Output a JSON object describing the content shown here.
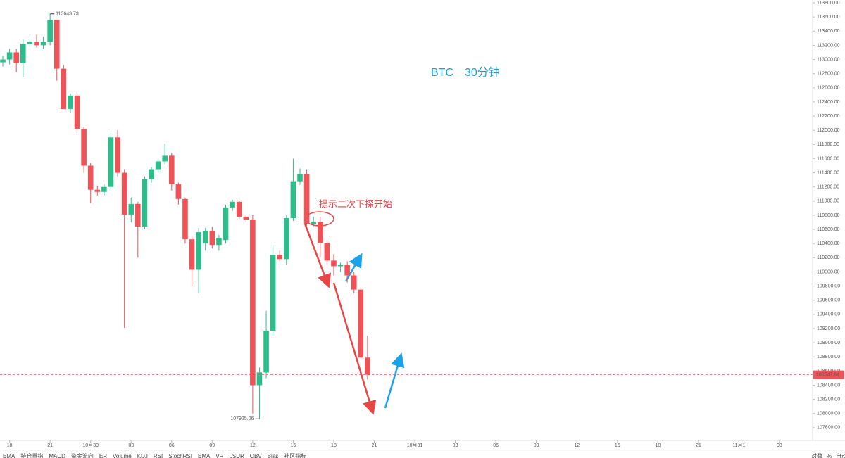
{
  "chart_data": {
    "type": "candlestick",
    "title": "BTC　30分钟",
    "note": "提示二次下探开始",
    "up_color": "#2dbd8a",
    "down_color": "#ef5358",
    "open": [
      112960,
      113000,
      113100,
      112950,
      113220,
      113250,
      113200,
      113250,
      113560,
      112870,
      112300,
      112490,
      112020,
      111500,
      111160,
      111130,
      111200,
      111900,
      111400,
      110810,
      110960,
      110640,
      111310,
      111450,
      111560,
      111640,
      111240,
      111030,
      110460,
      110030,
      110400,
      110580,
      110380,
      110450,
      110910,
      110990,
      110780,
      110740,
      108400,
      108580,
      109170,
      110240,
      110180,
      110760,
      111280,
      111380,
      110680,
      110710,
      110410,
      110160,
      110080,
      110100,
      109950,
      109750,
      108790
    ],
    "high": [
      113050,
      113150,
      113150,
      113280,
      113290,
      113350,
      113320,
      113643.73,
      113560,
      112920,
      112520,
      112520,
      112050,
      111540,
      111220,
      111240,
      111960,
      112000,
      111450,
      111050,
      110990,
      111350,
      111480,
      111600,
      111810,
      111680,
      111260,
      111050,
      110500,
      110620,
      110620,
      110640,
      110520,
      110950,
      111020,
      111000,
      110800,
      110800,
      108650,
      109450,
      110380,
      110300,
      110800,
      111600,
      111460,
      111450,
      110780,
      110780,
      110450,
      110250,
      110130,
      110150,
      110000,
      109780,
      109100
    ],
    "low": [
      112900,
      112930,
      112820,
      112750,
      113180,
      113170,
      113150,
      113200,
      112700,
      112300,
      112250,
      111960,
      111400,
      110970,
      111080,
      111080,
      111150,
      111350,
      109210,
      110700,
      110200,
      110600,
      111260,
      111400,
      111520,
      111150,
      110950,
      110400,
      109800,
      109700,
      110300,
      110330,
      110300,
      110400,
      110860,
      110750,
      110700,
      108000,
      107925.06,
      108500,
      109100,
      110150,
      110100,
      110720,
      111230,
      110650,
      110640,
      110200,
      110100,
      109950,
      110000,
      109850,
      109700,
      108780,
      108480
    ],
    "close": [
      113000,
      113100,
      112950,
      113220,
      113250,
      113200,
      113250,
      113560,
      112870,
      112300,
      112490,
      112020,
      111500,
      111160,
      111130,
      111200,
      111900,
      111400,
      110810,
      110960,
      110640,
      111310,
      111450,
      111560,
      111640,
      111240,
      111030,
      110460,
      110030,
      110560,
      110580,
      110380,
      110480,
      110910,
      110990,
      110780,
      110740,
      108400,
      108580,
      109170,
      110240,
      110180,
      110760,
      111280,
      111380,
      110680,
      110710,
      110410,
      110160,
      110080,
      110100,
      109950,
      109750,
      108790,
      108547.64
    ],
    "max_label": 113643.73,
    "min_label": 107925.06,
    "last_price": 108547.64,
    "xlim": [
      -0.42,
      119.7
    ],
    "xticks": [
      {
        "value": 1,
        "label": "18"
      },
      {
        "value": 7,
        "label": "21"
      },
      {
        "value": 13,
        "label": "10月30"
      },
      {
        "value": 19,
        "label": "03"
      },
      {
        "value": 25,
        "label": "06"
      },
      {
        "value": 31,
        "label": "09"
      },
      {
        "value": 37,
        "label": "12"
      },
      {
        "value": 43,
        "label": "15"
      },
      {
        "value": 49,
        "label": "18"
      },
      {
        "value": 55,
        "label": "21"
      },
      {
        "value": 61,
        "label": "10月31"
      },
      {
        "value": 67,
        "label": "03"
      },
      {
        "value": 73,
        "label": "06"
      },
      {
        "value": 79,
        "label": "09"
      },
      {
        "value": 85,
        "label": "12"
      },
      {
        "value": 91,
        "label": "15"
      },
      {
        "value": 97,
        "label": "18"
      },
      {
        "value": 103,
        "label": "21"
      },
      {
        "value": 109,
        "label": "11月1"
      },
      {
        "value": 115,
        "label": "03"
      }
    ],
    "ylim": [
      107620,
      113840
    ],
    "yticks": [
      {
        "value": 107800,
        "label": "107800.00"
      },
      {
        "value": 108000,
        "label": "108000.00"
      },
      {
        "value": 108200,
        "label": "108200.00"
      },
      {
        "value": 108400,
        "label": "108400.00"
      },
      {
        "value": 108600,
        "label": "108600.00"
      },
      {
        "value": 108800,
        "label": "108800.00"
      },
      {
        "value": 109000,
        "label": "109000.00"
      },
      {
        "value": 109200,
        "label": "109200.00"
      },
      {
        "value": 109400,
        "label": "109400.00"
      },
      {
        "value": 109600,
        "label": "109600.00"
      },
      {
        "value": 109800,
        "label": "109800.00"
      },
      {
        "value": 110000,
        "label": "110000.00"
      },
      {
        "value": 110200,
        "label": "110200.00"
      },
      {
        "value": 110400,
        "label": "110400.00"
      },
      {
        "value": 110600,
        "label": "110600.00"
      },
      {
        "value": 110800,
        "label": "110800.00"
      },
      {
        "value": 111000,
        "label": "111000.00"
      },
      {
        "value": 111200,
        "label": "111200.00"
      },
      {
        "value": 111400,
        "label": "111400.00"
      },
      {
        "value": 111600,
        "label": "111600.00"
      },
      {
        "value": 111800,
        "label": "111800.00"
      },
      {
        "value": 112000,
        "label": "112000.00"
      },
      {
        "value": 112200,
        "label": "112200.00"
      },
      {
        "value": 112400,
        "label": "112400.00"
      },
      {
        "value": 112600,
        "label": "112600.00"
      },
      {
        "value": 112800,
        "label": "112800.00"
      },
      {
        "value": 113000,
        "label": "113000.00"
      },
      {
        "value": 113200,
        "label": "113200.00"
      },
      {
        "value": 113400,
        "label": "113400.00"
      },
      {
        "value": 113600,
        "label": "113600.00"
      },
      {
        "value": 113800,
        "label": "113800.00"
      }
    ]
  },
  "toolbar": {
    "indicators": [
      "EMA",
      "持仓量指",
      "MACD",
      "资金流向",
      "ER",
      "Volume",
      "KDJ",
      "RSI",
      "StochRSI",
      "EMA",
      "VR",
      "LSUR",
      "OBV",
      "Bias",
      "社区指标"
    ],
    "options": [
      "对数",
      "%",
      "自动"
    ]
  }
}
